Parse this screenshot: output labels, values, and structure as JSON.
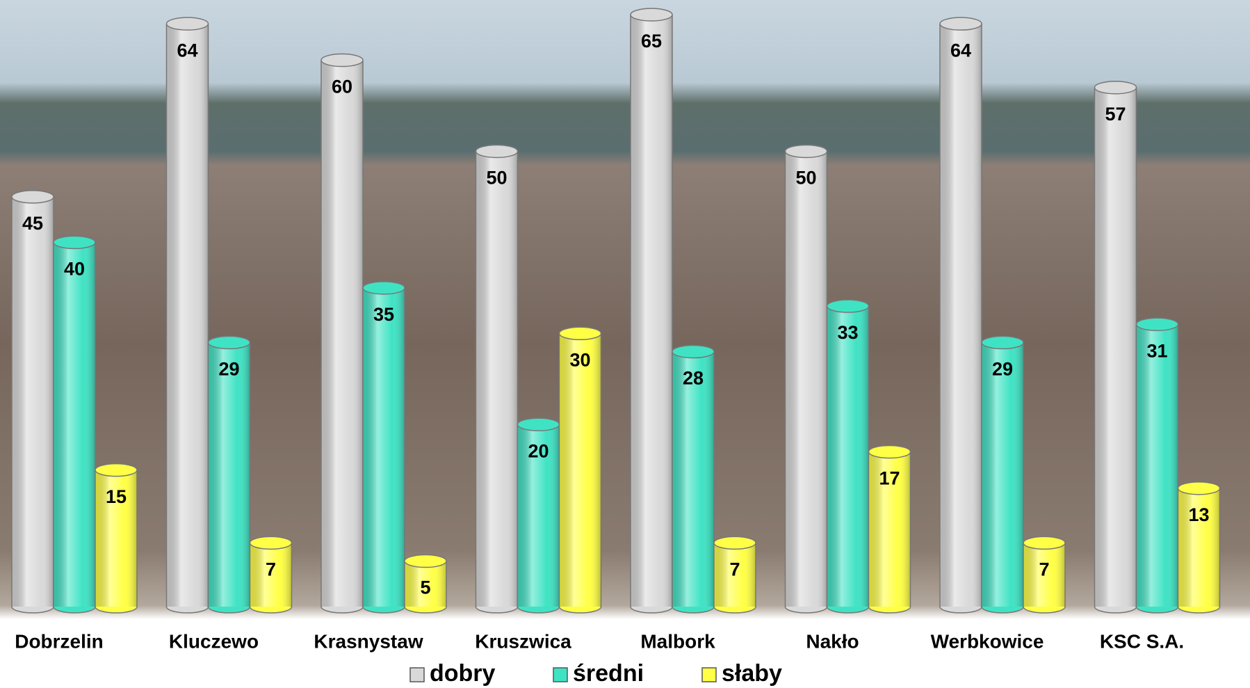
{
  "chart_data": {
    "type": "bar3d",
    "categories": [
      "Dobrzelin",
      "Kluczewo",
      "Krasnystaw",
      "Kruszwica",
      "Malbork",
      "Nakło",
      "Werbkowice",
      "KSC S.A."
    ],
    "series": [
      {
        "name": "dobry",
        "color": "#d9d9d9",
        "values": [
          45,
          64,
          60,
          50,
          65,
          50,
          64,
          57
        ]
      },
      {
        "name": "średni",
        "color": "#3fe3c4",
        "values": [
          40,
          29,
          35,
          20,
          28,
          33,
          29,
          31
        ]
      },
      {
        "name": "słaby",
        "color": "#ffff45",
        "values": [
          15,
          7,
          5,
          30,
          7,
          17,
          7,
          13
        ]
      }
    ],
    "ylim": [
      0,
      66
    ],
    "legend": "bottom"
  }
}
